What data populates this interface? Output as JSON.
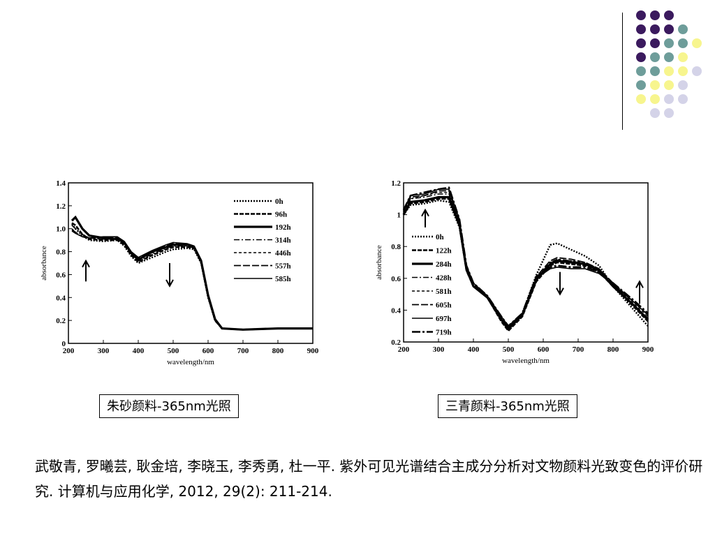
{
  "decoration": {
    "dot_rows": [
      [
        "purple",
        "purple",
        "purple"
      ],
      [
        "purple",
        "purple",
        "purple",
        "teal"
      ],
      [
        "purple",
        "purple",
        "teal",
        "teal",
        "yellow"
      ],
      [
        "purple",
        "teal",
        "teal",
        "yellow"
      ],
      [
        "teal",
        "teal",
        "yellow",
        "yellow",
        "lavender"
      ],
      [
        "teal",
        "yellow",
        "yellow",
        "lavender"
      ],
      [
        "yellow",
        "yellow",
        "lavender",
        "lavender"
      ],
      [
        "lavender",
        "lavender"
      ]
    ],
    "colors": {
      "purple": "#3b1a5e",
      "teal": "#6e9d9a",
      "yellow": "#f7f58e",
      "lavender": "#d4d3e8"
    }
  },
  "chart_data": [
    {
      "type": "line",
      "xlabel": "wavelength/nm",
      "ylabel": "absorbance",
      "xlim": [
        200,
        900
      ],
      "ylim": [
        0,
        1.4
      ],
      "x_ticks": [
        200,
        300,
        400,
        500,
        600,
        700,
        800,
        900
      ],
      "y_ticks": [
        0,
        0.2,
        0.4,
        0.6,
        0.8,
        1.0,
        1.2,
        1.4
      ],
      "y_tick_labels": [
        "0",
        "0.2",
        "0.4",
        "0.6",
        "0.8",
        "1.0",
        "1.2",
        "1.4"
      ],
      "legend": [
        "0h",
        "96h",
        "192h",
        "314h",
        "446h",
        "557h",
        "585h"
      ],
      "legend_position": "top-right",
      "grid": false,
      "x": [
        210,
        220,
        240,
        260,
        300,
        340,
        360,
        380,
        400,
        440,
        480,
        500,
        540,
        560,
        580,
        600,
        620,
        640,
        700,
        800,
        900
      ],
      "series": [
        {
          "name": "0h",
          "values": [
            1.04,
            1.0,
            0.94,
            0.9,
            0.89,
            0.9,
            0.85,
            0.76,
            0.7,
            0.75,
            0.8,
            0.82,
            0.83,
            0.82,
            0.7,
            0.4,
            0.2,
            0.13,
            0.12,
            0.13,
            0.13
          ]
        },
        {
          "name": "96h",
          "values": [
            1.05,
            1.03,
            0.95,
            0.91,
            0.9,
            0.9,
            0.86,
            0.77,
            0.71,
            0.77,
            0.82,
            0.84,
            0.84,
            0.83,
            0.71,
            0.41,
            0.2,
            0.13,
            0.12,
            0.13,
            0.13
          ]
        },
        {
          "name": "192h",
          "values": [
            1.07,
            1.1,
            1.0,
            0.94,
            0.92,
            0.91,
            0.88,
            0.79,
            0.73,
            0.8,
            0.84,
            0.86,
            0.86,
            0.84,
            0.72,
            0.42,
            0.21,
            0.13,
            0.12,
            0.13,
            0.13
          ]
        },
        {
          "name": "314h",
          "values": [
            1.03,
            1.0,
            0.95,
            0.92,
            0.91,
            0.91,
            0.87,
            0.78,
            0.72,
            0.78,
            0.83,
            0.85,
            0.85,
            0.83,
            0.71,
            0.41,
            0.21,
            0.13,
            0.12,
            0.13,
            0.13
          ]
        },
        {
          "name": "446h",
          "values": [
            1.0,
            0.97,
            0.93,
            0.91,
            0.91,
            0.91,
            0.87,
            0.78,
            0.73,
            0.79,
            0.84,
            0.86,
            0.85,
            0.83,
            0.71,
            0.41,
            0.21,
            0.13,
            0.12,
            0.13,
            0.13
          ]
        },
        {
          "name": "557h",
          "values": [
            0.99,
            0.97,
            0.93,
            0.92,
            0.92,
            0.92,
            0.88,
            0.79,
            0.74,
            0.8,
            0.85,
            0.87,
            0.86,
            0.84,
            0.72,
            0.42,
            0.21,
            0.13,
            0.12,
            0.13,
            0.13
          ]
        },
        {
          "name": "585h",
          "values": [
            0.98,
            0.96,
            0.93,
            0.92,
            0.93,
            0.93,
            0.89,
            0.8,
            0.75,
            0.81,
            0.86,
            0.88,
            0.87,
            0.85,
            0.73,
            0.42,
            0.21,
            0.13,
            0.12,
            0.13,
            0.13
          ]
        }
      ],
      "annotations": [
        {
          "type": "arrow-up",
          "x": 250,
          "y_from": 0.54,
          "y_to": 0.72
        },
        {
          "type": "arrow-down",
          "x": 490,
          "y_from": 0.7,
          "y_to": 0.5
        }
      ]
    },
    {
      "type": "line",
      "xlabel": "wavelength/nm",
      "ylabel": "absorbance",
      "xlim": [
        200,
        900
      ],
      "ylim": [
        0.2,
        1.2
      ],
      "x_ticks": [
        200,
        300,
        400,
        500,
        600,
        700,
        800,
        900
      ],
      "y_ticks": [
        0.2,
        0.4,
        0.6,
        0.8,
        1.0,
        1.2
      ],
      "y_tick_labels": [
        "0.2",
        "0.4",
        "0.6",
        "0.8",
        "1",
        "1.2"
      ],
      "legend": [
        "0h",
        "122h",
        "284h",
        "428h",
        "581h",
        "605h",
        "697h",
        "719h"
      ],
      "legend_position": "center-left",
      "grid": false,
      "x": [
        200,
        220,
        260,
        300,
        330,
        360,
        380,
        400,
        440,
        480,
        500,
        540,
        580,
        620,
        640,
        680,
        720,
        760,
        800,
        860,
        900
      ],
      "series": [
        {
          "name": "0h",
          "values": [
            1.0,
            1.06,
            1.07,
            1.09,
            1.08,
            0.92,
            0.65,
            0.55,
            0.48,
            0.35,
            0.28,
            0.38,
            0.62,
            0.81,
            0.82,
            0.78,
            0.74,
            0.68,
            0.55,
            0.4,
            0.3
          ]
        },
        {
          "name": "122h",
          "values": [
            1.0,
            1.07,
            1.08,
            1.1,
            1.1,
            0.93,
            0.65,
            0.55,
            0.48,
            0.33,
            0.27,
            0.36,
            0.58,
            0.68,
            0.7,
            0.69,
            0.68,
            0.64,
            0.55,
            0.42,
            0.33
          ]
        },
        {
          "name": "284h",
          "values": [
            1.0,
            1.08,
            1.09,
            1.11,
            1.11,
            0.94,
            0.66,
            0.55,
            0.48,
            0.34,
            0.28,
            0.37,
            0.59,
            0.69,
            0.71,
            0.7,
            0.69,
            0.65,
            0.55,
            0.43,
            0.34
          ]
        },
        {
          "name": "428h",
          "values": [
            1.0,
            1.1,
            1.11,
            1.13,
            1.13,
            0.95,
            0.66,
            0.56,
            0.48,
            0.34,
            0.28,
            0.37,
            0.6,
            0.7,
            0.72,
            0.71,
            0.69,
            0.65,
            0.56,
            0.43,
            0.35
          ]
        },
        {
          "name": "581h",
          "values": [
            1.02,
            1.1,
            1.12,
            1.14,
            1.14,
            0.96,
            0.67,
            0.56,
            0.48,
            0.35,
            0.29,
            0.37,
            0.6,
            0.7,
            0.72,
            0.71,
            0.7,
            0.66,
            0.56,
            0.44,
            0.36
          ]
        },
        {
          "name": "605h",
          "values": [
            1.02,
            1.11,
            1.12,
            1.15,
            1.15,
            0.96,
            0.67,
            0.56,
            0.49,
            0.35,
            0.29,
            0.37,
            0.61,
            0.71,
            0.73,
            0.72,
            0.7,
            0.66,
            0.57,
            0.45,
            0.37
          ]
        },
        {
          "name": "697h",
          "values": [
            1.03,
            1.12,
            1.13,
            1.16,
            1.16,
            0.97,
            0.68,
            0.57,
            0.49,
            0.36,
            0.3,
            0.38,
            0.6,
            0.66,
            0.67,
            0.66,
            0.66,
            0.63,
            0.56,
            0.45,
            0.37
          ]
        },
        {
          "name": "719h",
          "values": [
            1.03,
            1.12,
            1.14,
            1.16,
            1.17,
            0.97,
            0.68,
            0.57,
            0.49,
            0.36,
            0.3,
            0.38,
            0.61,
            0.67,
            0.68,
            0.67,
            0.67,
            0.64,
            0.57,
            0.46,
            0.38
          ]
        }
      ],
      "annotations": [
        {
          "type": "arrow-up",
          "x": 262,
          "y_from": 0.92,
          "y_to": 1.03
        },
        {
          "type": "arrow-down",
          "x": 648,
          "y_from": 0.64,
          "y_to": 0.5
        },
        {
          "type": "arrow-up",
          "x": 876,
          "y_from": 0.44,
          "y_to": 0.58
        }
      ]
    }
  ],
  "captions": {
    "left": "朱砂颜料-365nm光照",
    "right": "三青颜料-365nm光照"
  },
  "citation": {
    "text": "武敬青, 罗曦芸, 耿金培, 李晓玉, 李秀勇, 杜一平. 紫外可见光谱结合主成分分析对文物颜料光致变色的评价研究. 计算机与应用化学, 2012, 29(2): 211-214."
  }
}
